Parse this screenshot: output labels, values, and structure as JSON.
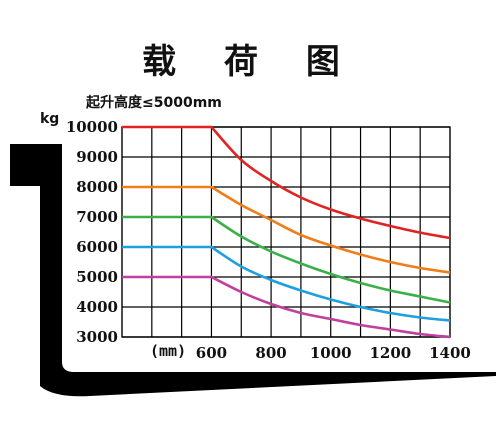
{
  "chart_data": {
    "type": "line",
    "title": "载 荷 图",
    "subtitle": "起升高度≤5000mm",
    "ylabel": "kg",
    "xlabel": "(mm)",
    "x_ticks": [
      600,
      800,
      1000,
      1200,
      1400
    ],
    "y_ticks": [
      3000,
      4000,
      5000,
      6000,
      7000,
      8000,
      9000,
      10000
    ],
    "xlim": [
      300,
      1400
    ],
    "ylim": [
      3000,
      10000
    ],
    "grid": true,
    "x": [
      300,
      600,
      700,
      800,
      900,
      1000,
      1100,
      1200,
      1300,
      1400
    ],
    "series": [
      {
        "color": "#e02424",
        "values": [
          10000,
          10000,
          8900,
          8200,
          7650,
          7250,
          6950,
          6700,
          6480,
          6300
        ]
      },
      {
        "color": "#f07d1a",
        "values": [
          8000,
          8000,
          7400,
          6900,
          6400,
          6050,
          5750,
          5500,
          5300,
          5150
        ]
      },
      {
        "color": "#3bb04a",
        "values": [
          7000,
          7000,
          6350,
          5850,
          5450,
          5100,
          4800,
          4550,
          4350,
          4150
        ]
      },
      {
        "color": "#1ea0e0",
        "values": [
          6000,
          6000,
          5350,
          4900,
          4550,
          4250,
          4000,
          3800,
          3650,
          3550
        ]
      },
      {
        "color": "#c040a0",
        "values": [
          5000,
          5000,
          4500,
          4100,
          3800,
          3600,
          3400,
          3250,
          3100,
          3000
        ]
      }
    ]
  }
}
